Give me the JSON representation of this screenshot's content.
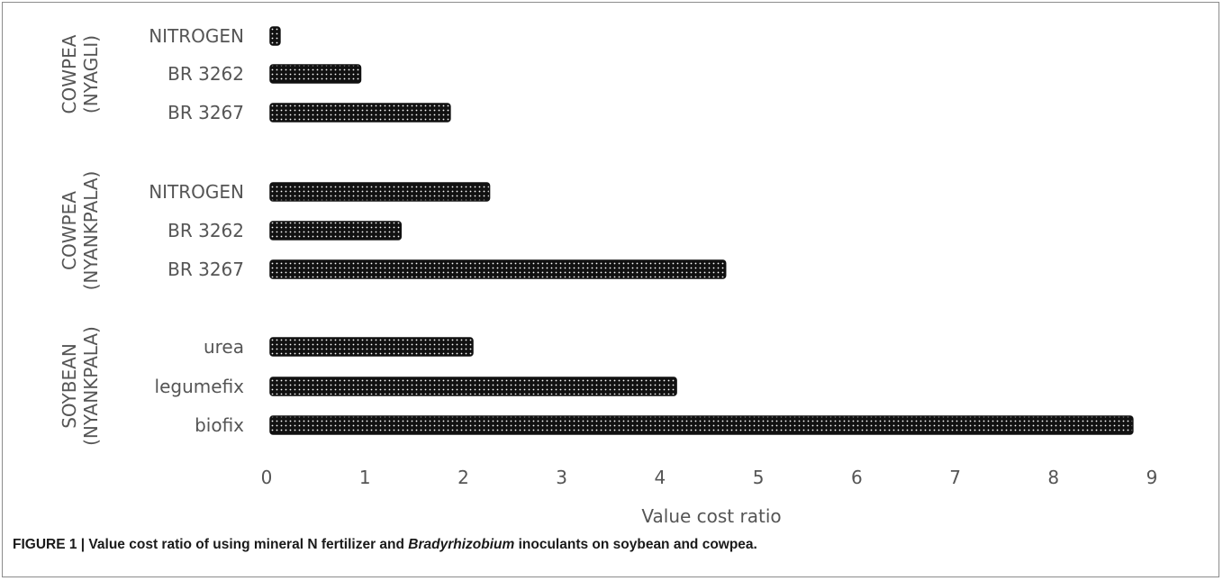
{
  "chart_data": {
    "type": "bar",
    "orientation": "horizontal",
    "xlabel": "Value cost ratio",
    "xlim": [
      0,
      9
    ],
    "xticks": [
      "0",
      "1",
      "2",
      "3",
      "4",
      "5",
      "6",
      "7",
      "8",
      "9"
    ],
    "grid": false,
    "legend": "none",
    "bar_color": "#111111",
    "bar_pattern": "dotted",
    "groups": [
      {
        "name": "COWPEA (NYAGLI)",
        "name_lines": [
          "COWPEA",
          "(NYAGLI)"
        ],
        "categories": [
          "NITROGEN",
          "BR 3262",
          "BR 3267"
        ],
        "values": [
          0.1,
          0.92,
          1.83
        ]
      },
      {
        "name": "COWPEA (NYANKPALA)",
        "name_lines": [
          "COWPEA",
          "(NYANKPALA)"
        ],
        "categories": [
          "NITROGEN",
          "BR 3262",
          "BR 3267"
        ],
        "values": [
          2.23,
          1.33,
          4.63
        ]
      },
      {
        "name": "SOYBEAN (NYANKPALA)",
        "name_lines": [
          "SOYBEAN",
          "(NYANKPALA)"
        ],
        "categories": [
          "urea",
          "legumefix",
          "biofix"
        ],
        "values": [
          2.06,
          4.13,
          8.77
        ]
      }
    ]
  },
  "caption": {
    "prefix": "FIGURE 1 | Value cost ratio of using mineral N fertilizer and ",
    "italic": "Bradyrhizobium",
    "suffix": " inoculants on soybean and cowpea."
  }
}
